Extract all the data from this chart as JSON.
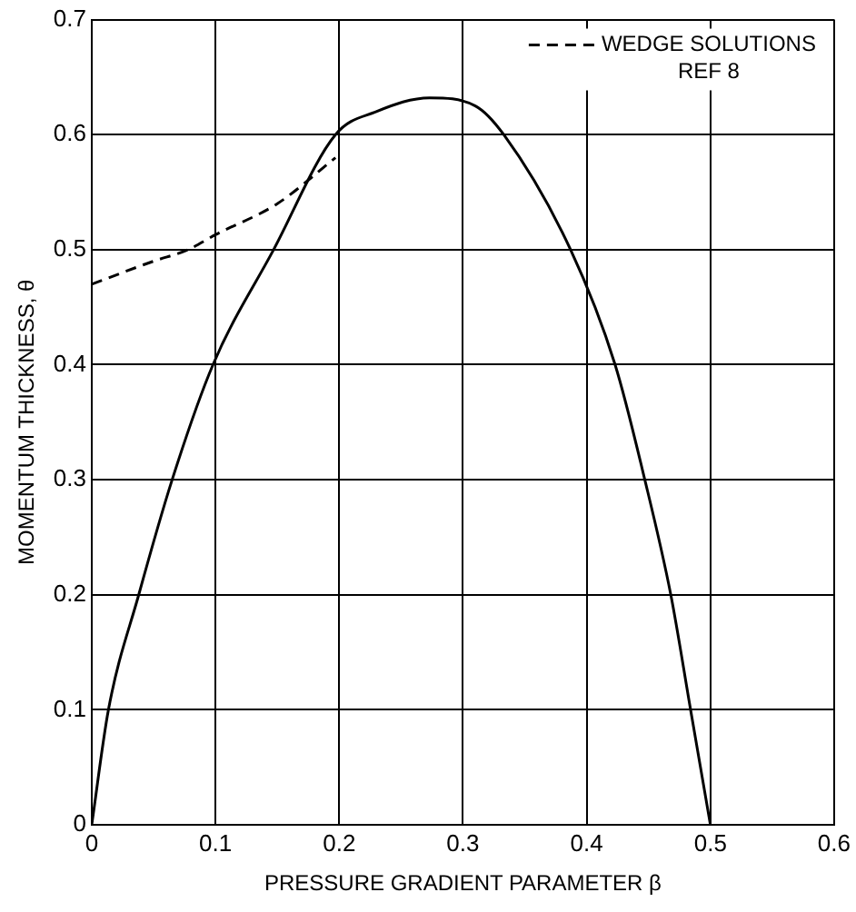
{
  "chart_data": {
    "type": "line",
    "xlabel": "PRESSURE GRADIENT PARAMETER β",
    "ylabel": "MOMENTUM THICKNESS, θ",
    "xlim": [
      0,
      0.6
    ],
    "ylim": [
      0,
      0.7
    ],
    "xticks": [
      0,
      0.1,
      0.2,
      0.3,
      0.4,
      0.5,
      0.6
    ],
    "yticks": [
      0,
      0.1,
      0.2,
      0.3,
      0.4,
      0.5,
      0.6,
      0.7
    ],
    "grid": true,
    "legend": "top right",
    "marker": "none",
    "series": [
      {
        "color": "#000000",
        "line_style": "solid",
        "x": [
          0,
          0.0135,
          0.038,
          0.065,
          0.098,
          0.147,
          0.197,
          0.23,
          0.273,
          0.31,
          0.333,
          0.387,
          0.423,
          0.447,
          0.468,
          0.484,
          0.5
        ],
        "values": [
          0,
          0.1,
          0.2,
          0.3,
          0.4,
          0.5,
          0.6,
          0.62,
          0.632,
          0.625,
          0.6,
          0.5,
          0.4,
          0.3,
          0.2,
          0.1,
          0
        ]
      },
      {
        "name": "WEDGE SOLUTIONS REF 8",
        "color": "#000000",
        "line_style": "dashed",
        "x": [
          0,
          0.05,
          0.078,
          0.1,
          0.15,
          0.197
        ],
        "values": [
          0.47,
          0.49,
          0.5,
          0.513,
          0.54,
          0.58
        ]
      }
    ]
  }
}
